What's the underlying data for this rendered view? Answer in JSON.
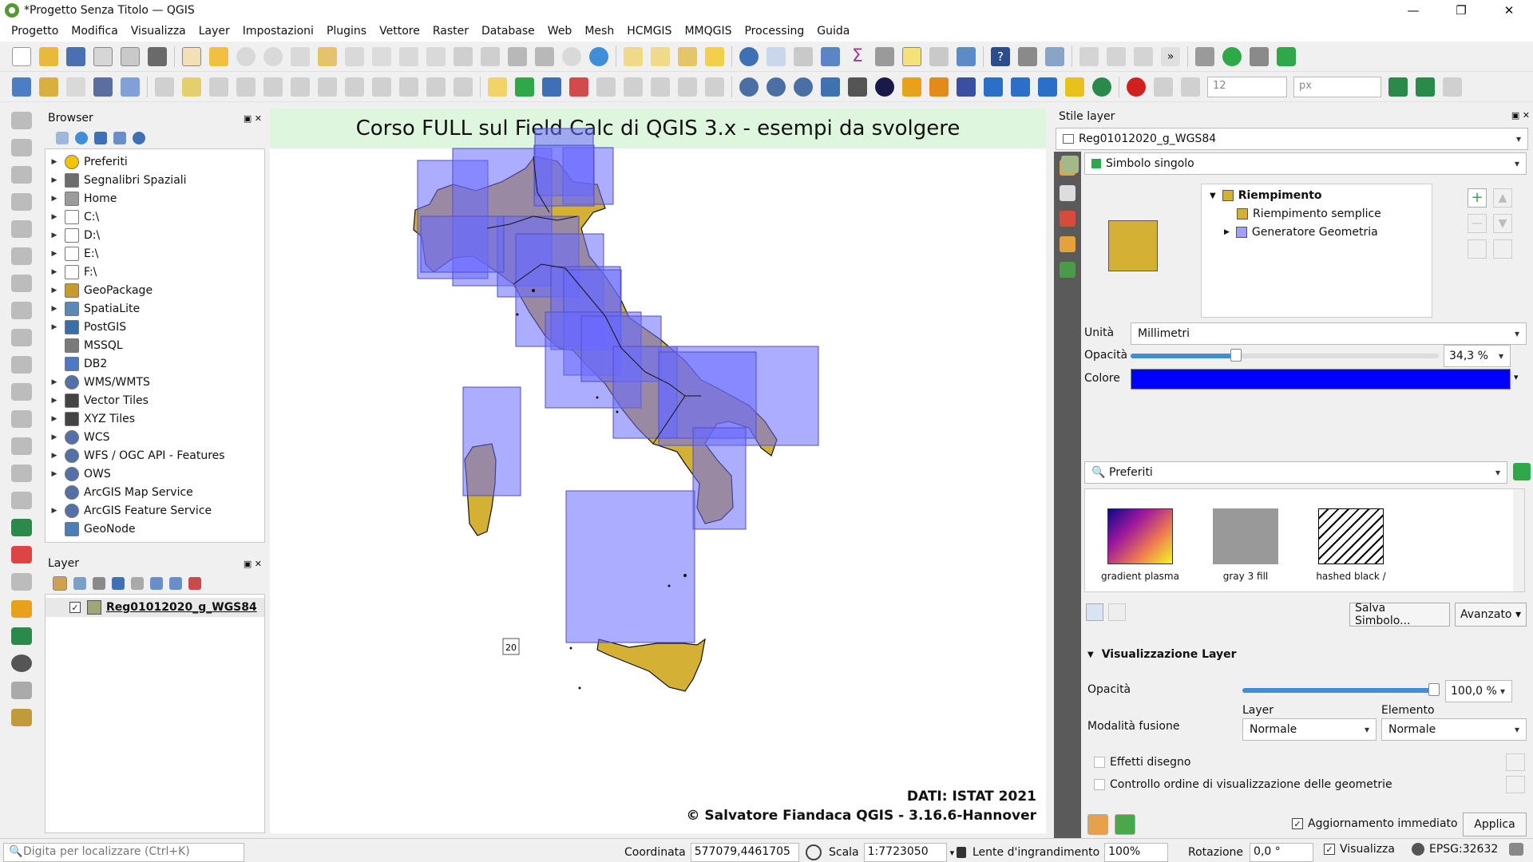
{
  "window": {
    "title": "*Progetto Senza Titolo — QGIS",
    "minimize": "—",
    "restore": "❐",
    "close": "✕"
  },
  "menu": [
    "Progetto",
    "Modifica",
    "Visualizza",
    "Layer",
    "Impostazioni",
    "Plugins",
    "Vettore",
    "Raster",
    "Database",
    "Web",
    "Mesh",
    "HCMGIS",
    "MMQGIS",
    "Processing",
    "Guida"
  ],
  "toolbar": {
    "font_size": "12",
    "unit": "px"
  },
  "browser": {
    "title": "Browser",
    "items": [
      {
        "label": "Preferiti",
        "expand": true,
        "icon": "star-icon",
        "color": "#f2c500"
      },
      {
        "label": "Segnalibri Spaziali",
        "expand": true,
        "icon": "bookmark-icon",
        "color": "#6e6e6e"
      },
      {
        "label": "Home",
        "expand": true,
        "icon": "home-icon",
        "color": "#9b9b9b"
      },
      {
        "label": "C:\\",
        "expand": true,
        "icon": "folder-icon",
        "color": "#ffffff"
      },
      {
        "label": "D:\\",
        "expand": true,
        "icon": "folder-icon",
        "color": "#ffffff"
      },
      {
        "label": "E:\\",
        "expand": true,
        "icon": "folder-icon",
        "color": "#ffffff"
      },
      {
        "label": "F:\\",
        "expand": true,
        "icon": "folder-icon",
        "color": "#ffffff"
      },
      {
        "label": "GeoPackage",
        "expand": true,
        "icon": "geopackage-icon",
        "color": "#c99a2e"
      },
      {
        "label": "SpatiaLite",
        "expand": true,
        "icon": "spatialite-icon",
        "color": "#5a88b8"
      },
      {
        "label": "PostGIS",
        "expand": true,
        "icon": "postgis-icon",
        "color": "#3a6ea8"
      },
      {
        "label": "MSSQL",
        "expand": false,
        "icon": "mssql-icon",
        "color": "#7a7a7a"
      },
      {
        "label": "DB2",
        "expand": false,
        "icon": "db2-icon",
        "color": "#4f78c4"
      },
      {
        "label": "WMS/WMTS",
        "expand": true,
        "icon": "globe-icon",
        "color": "#5470a8"
      },
      {
        "label": "Vector Tiles",
        "expand": true,
        "icon": "grid-icon",
        "color": "#444444"
      },
      {
        "label": "XYZ Tiles",
        "expand": true,
        "icon": "grid-icon",
        "color": "#444444"
      },
      {
        "label": "WCS",
        "expand": true,
        "icon": "globe-icon",
        "color": "#5470a8"
      },
      {
        "label": "WFS / OGC API - Features",
        "expand": true,
        "icon": "globe-icon",
        "color": "#5470a8"
      },
      {
        "label": "OWS",
        "expand": true,
        "icon": "globe-icon",
        "color": "#5470a8"
      },
      {
        "label": "ArcGIS Map Service",
        "expand": false,
        "icon": "globe-icon",
        "color": "#5470a8"
      },
      {
        "label": "ArcGIS Feature Service",
        "expand": true,
        "icon": "globe-icon",
        "color": "#5470a8"
      },
      {
        "label": "GeoNode",
        "expand": false,
        "icon": "geonode-icon",
        "color": "#4b7db8"
      }
    ]
  },
  "layers": {
    "title": "Layer",
    "items": [
      {
        "name": "Reg01012020_g_WGS84",
        "checked": "✓",
        "swatch": "#a1a67a"
      }
    ]
  },
  "map": {
    "title": "Corso FULL sul Field Calc di QGIS 3.x - esempi da svolgere",
    "credit1": "DATI: ISTAT 2021",
    "credit2": "© Salvatore Fiandaca QGIS - 3.16.6-Hannover",
    "label_20": "20",
    "fill_color": "#d4b034",
    "bbox_color": "#6a6aff"
  },
  "style": {
    "panel_title": "Stile layer",
    "layer_combo": "Reg01012020_g_WGS84",
    "renderer": "Simbolo singolo",
    "tree": [
      "Riempimento",
      "Riempimento semplice",
      "Generatore Geometria"
    ],
    "unit_label": "Unità",
    "unit_value": "Millimetri",
    "opacity_label": "Opacità",
    "opacity_value": "34,3 %",
    "opacity_fraction": 0.343,
    "color_label": "Colore",
    "color_value": "#0000ff",
    "search_text": "Preferiti",
    "symbols": [
      {
        "name": "gradient  plasma"
      },
      {
        "name": "gray 3 fill"
      },
      {
        "name": "hashed black /"
      }
    ],
    "save_symbol": "Salva Simbolo...",
    "advanced": "Avanzato",
    "layer_render_title": "Visualizzazione Layer",
    "layer_opacity_label": "Opacità",
    "layer_opacity_value": "100,0 %",
    "layer_opacity_fraction": 1.0,
    "blend_label": "Modalità fusione",
    "blend_layer_label": "Layer",
    "blend_layer_value": "Normale",
    "blend_element_label": "Elemento",
    "blend_element_value": "Normale",
    "effects": "Effetti disegno",
    "order": "Controllo ordine di visualizzazione delle geometrie",
    "live_update": "Aggiornamento immediato",
    "apply": "Applica"
  },
  "status": {
    "locator_placeholder": "Digita per localizzare (Ctrl+K)",
    "coord_label": "Coordinata",
    "coord_value": "577079,4461705",
    "scale_label": "Scala",
    "scale_value": "1:7723050",
    "magnifier_label": "Lente d'ingrandimento",
    "magnifier_value": "100%",
    "rotation_label": "Rotazione",
    "rotation_value": "0,0 °",
    "render_label": "Visualizza",
    "crs": "EPSG:32632"
  }
}
